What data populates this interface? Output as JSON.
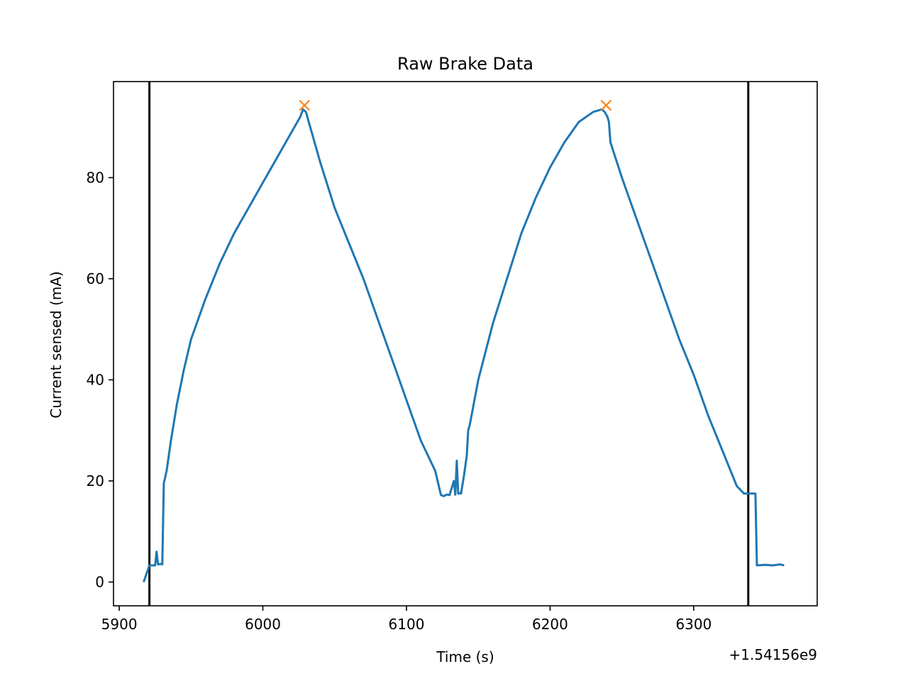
{
  "chart_data": {
    "type": "line",
    "title": "Raw Brake Data",
    "xlabel": "Time (s)",
    "ylabel": "Current sensed (mA)",
    "x_offset_label": "+1.54156e9",
    "xlim": [
      5896,
      6386
    ],
    "ylim": [
      -4.7,
      99
    ],
    "x_ticks": [
      5900,
      6000,
      6100,
      6200,
      6300
    ],
    "x_tick_labels": [
      "5900",
      "6000",
      "6100",
      "6200",
      "6300"
    ],
    "y_ticks": [
      0,
      20,
      40,
      60,
      80
    ],
    "y_tick_labels": [
      "0",
      "20",
      "40",
      "60",
      "80"
    ],
    "grid": false,
    "series": [
      {
        "color": "#1f77b4",
        "x": [
          5917,
          5921,
          5923,
          5925,
          5926,
          5927,
          5929,
          5930,
          5931,
          5933,
          5934,
          5936,
          5940,
          5945,
          5950,
          5960,
          5970,
          5980,
          5990,
          6000,
          6010,
          6020,
          6026,
          6028,
          6030,
          6031,
          6032,
          6040,
          6050,
          6060,
          6070,
          6080,
          6090,
          6100,
          6110,
          6120,
          6124,
          6126,
          6128,
          6130,
          6133,
          6134,
          6135,
          6136,
          6137,
          6138,
          6140,
          6142,
          6143,
          6144,
          6150,
          6160,
          6170,
          6180,
          6190,
          6200,
          6210,
          6220,
          6230,
          6236,
          6238,
          6240,
          6241,
          6242,
          6250,
          6260,
          6270,
          6280,
          6290,
          6300,
          6310,
          6320,
          6330,
          6335,
          6337,
          6338,
          6339,
          6341,
          6343,
          6344,
          6350,
          6355,
          6360,
          6363
        ],
        "y": [
          0,
          3.3,
          3.3,
          3.3,
          6,
          3.5,
          3.6,
          3.5,
          19.5,
          22,
          24,
          28,
          35,
          42,
          48,
          56,
          63,
          69,
          74,
          79,
          84,
          89,
          92,
          93.5,
          93,
          92,
          91,
          83,
          74,
          67,
          60,
          52,
          44,
          36,
          28,
          22,
          17.2,
          17,
          17.3,
          17.2,
          20,
          17.3,
          24,
          17.5,
          17.6,
          17.5,
          21,
          25,
          30,
          31,
          40,
          51,
          60,
          69,
          76,
          82,
          87,
          91,
          93,
          93.5,
          93,
          92,
          91,
          87,
          80,
          72,
          64,
          56,
          48,
          41,
          33,
          26,
          19,
          17.5,
          17.5,
          17.5,
          17.5,
          17.5,
          17.5,
          3.3,
          3.4,
          3.3,
          3.5,
          3.3
        ]
      }
    ],
    "peaks": {
      "color": "#ff7f0e",
      "marker": "x",
      "x": [
        6029,
        6239
      ],
      "y": [
        94.3,
        94.3
      ]
    },
    "vlines": {
      "color": "#000000",
      "x": [
        5921,
        6338
      ]
    }
  }
}
